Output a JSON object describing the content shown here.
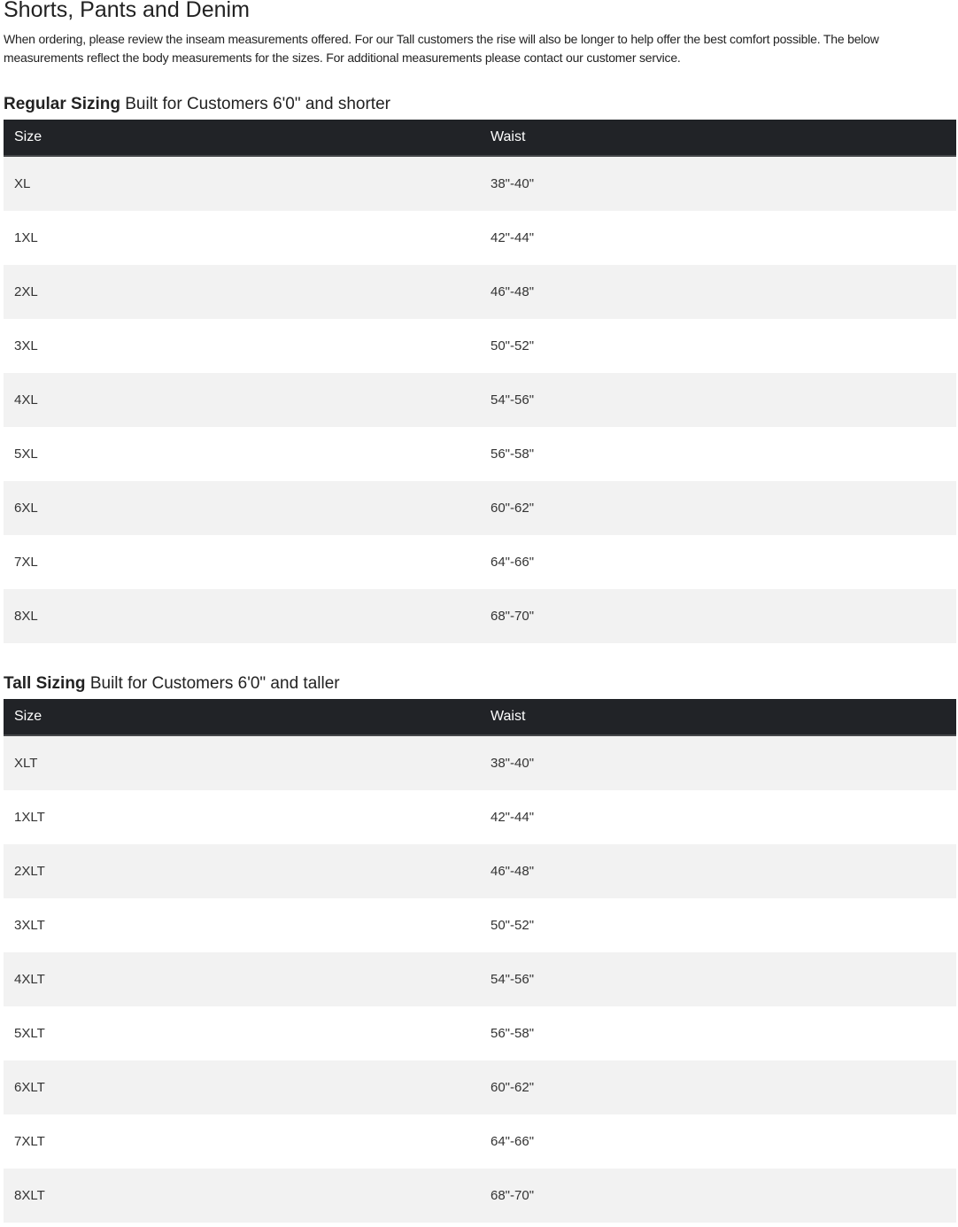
{
  "title": "Shorts, Pants and Denim",
  "intro": "When ordering, please review the inseam measurements offered. For our Tall customers the rise will also be longer to help offer the best comfort possible. The below measurements reflect the body measurements for the sizes. For additional measurements please contact our customer service.",
  "regular": {
    "title_bold": "Regular Sizing",
    "title_rest": " Built for Customers 6'0\" and shorter",
    "headers": [
      "Size",
      "Waist"
    ],
    "rows": [
      [
        "XL",
        "38\"-40\""
      ],
      [
        "1XL",
        "42\"-44\""
      ],
      [
        "2XL",
        "46\"-48\""
      ],
      [
        "3XL",
        "50\"-52\""
      ],
      [
        "4XL",
        "54\"-56\""
      ],
      [
        "5XL",
        "56\"-58\""
      ],
      [
        "6XL",
        "60\"-62\""
      ],
      [
        "7XL",
        "64\"-66\""
      ],
      [
        "8XL",
        "68\"-70\""
      ]
    ]
  },
  "tall": {
    "title_bold": "Tall Sizing",
    "title_rest": " Built for Customers 6'0\" and taller",
    "headers": [
      "Size",
      "Waist"
    ],
    "rows": [
      [
        "XLT",
        "38\"-40\""
      ],
      [
        "1XLT",
        "42\"-44\""
      ],
      [
        "2XLT",
        "46\"-48\""
      ],
      [
        "3XLT",
        "50\"-52\""
      ],
      [
        "4XLT",
        "54\"-56\""
      ],
      [
        "5XLT",
        "56\"-58\""
      ],
      [
        "6XLT",
        "60\"-62\""
      ],
      [
        "7XLT",
        "64\"-66\""
      ],
      [
        "8XLT",
        "68\"-70\""
      ]
    ]
  },
  "colors": {
    "header_bg": "#212327",
    "stripe": "#f2f2f2"
  }
}
